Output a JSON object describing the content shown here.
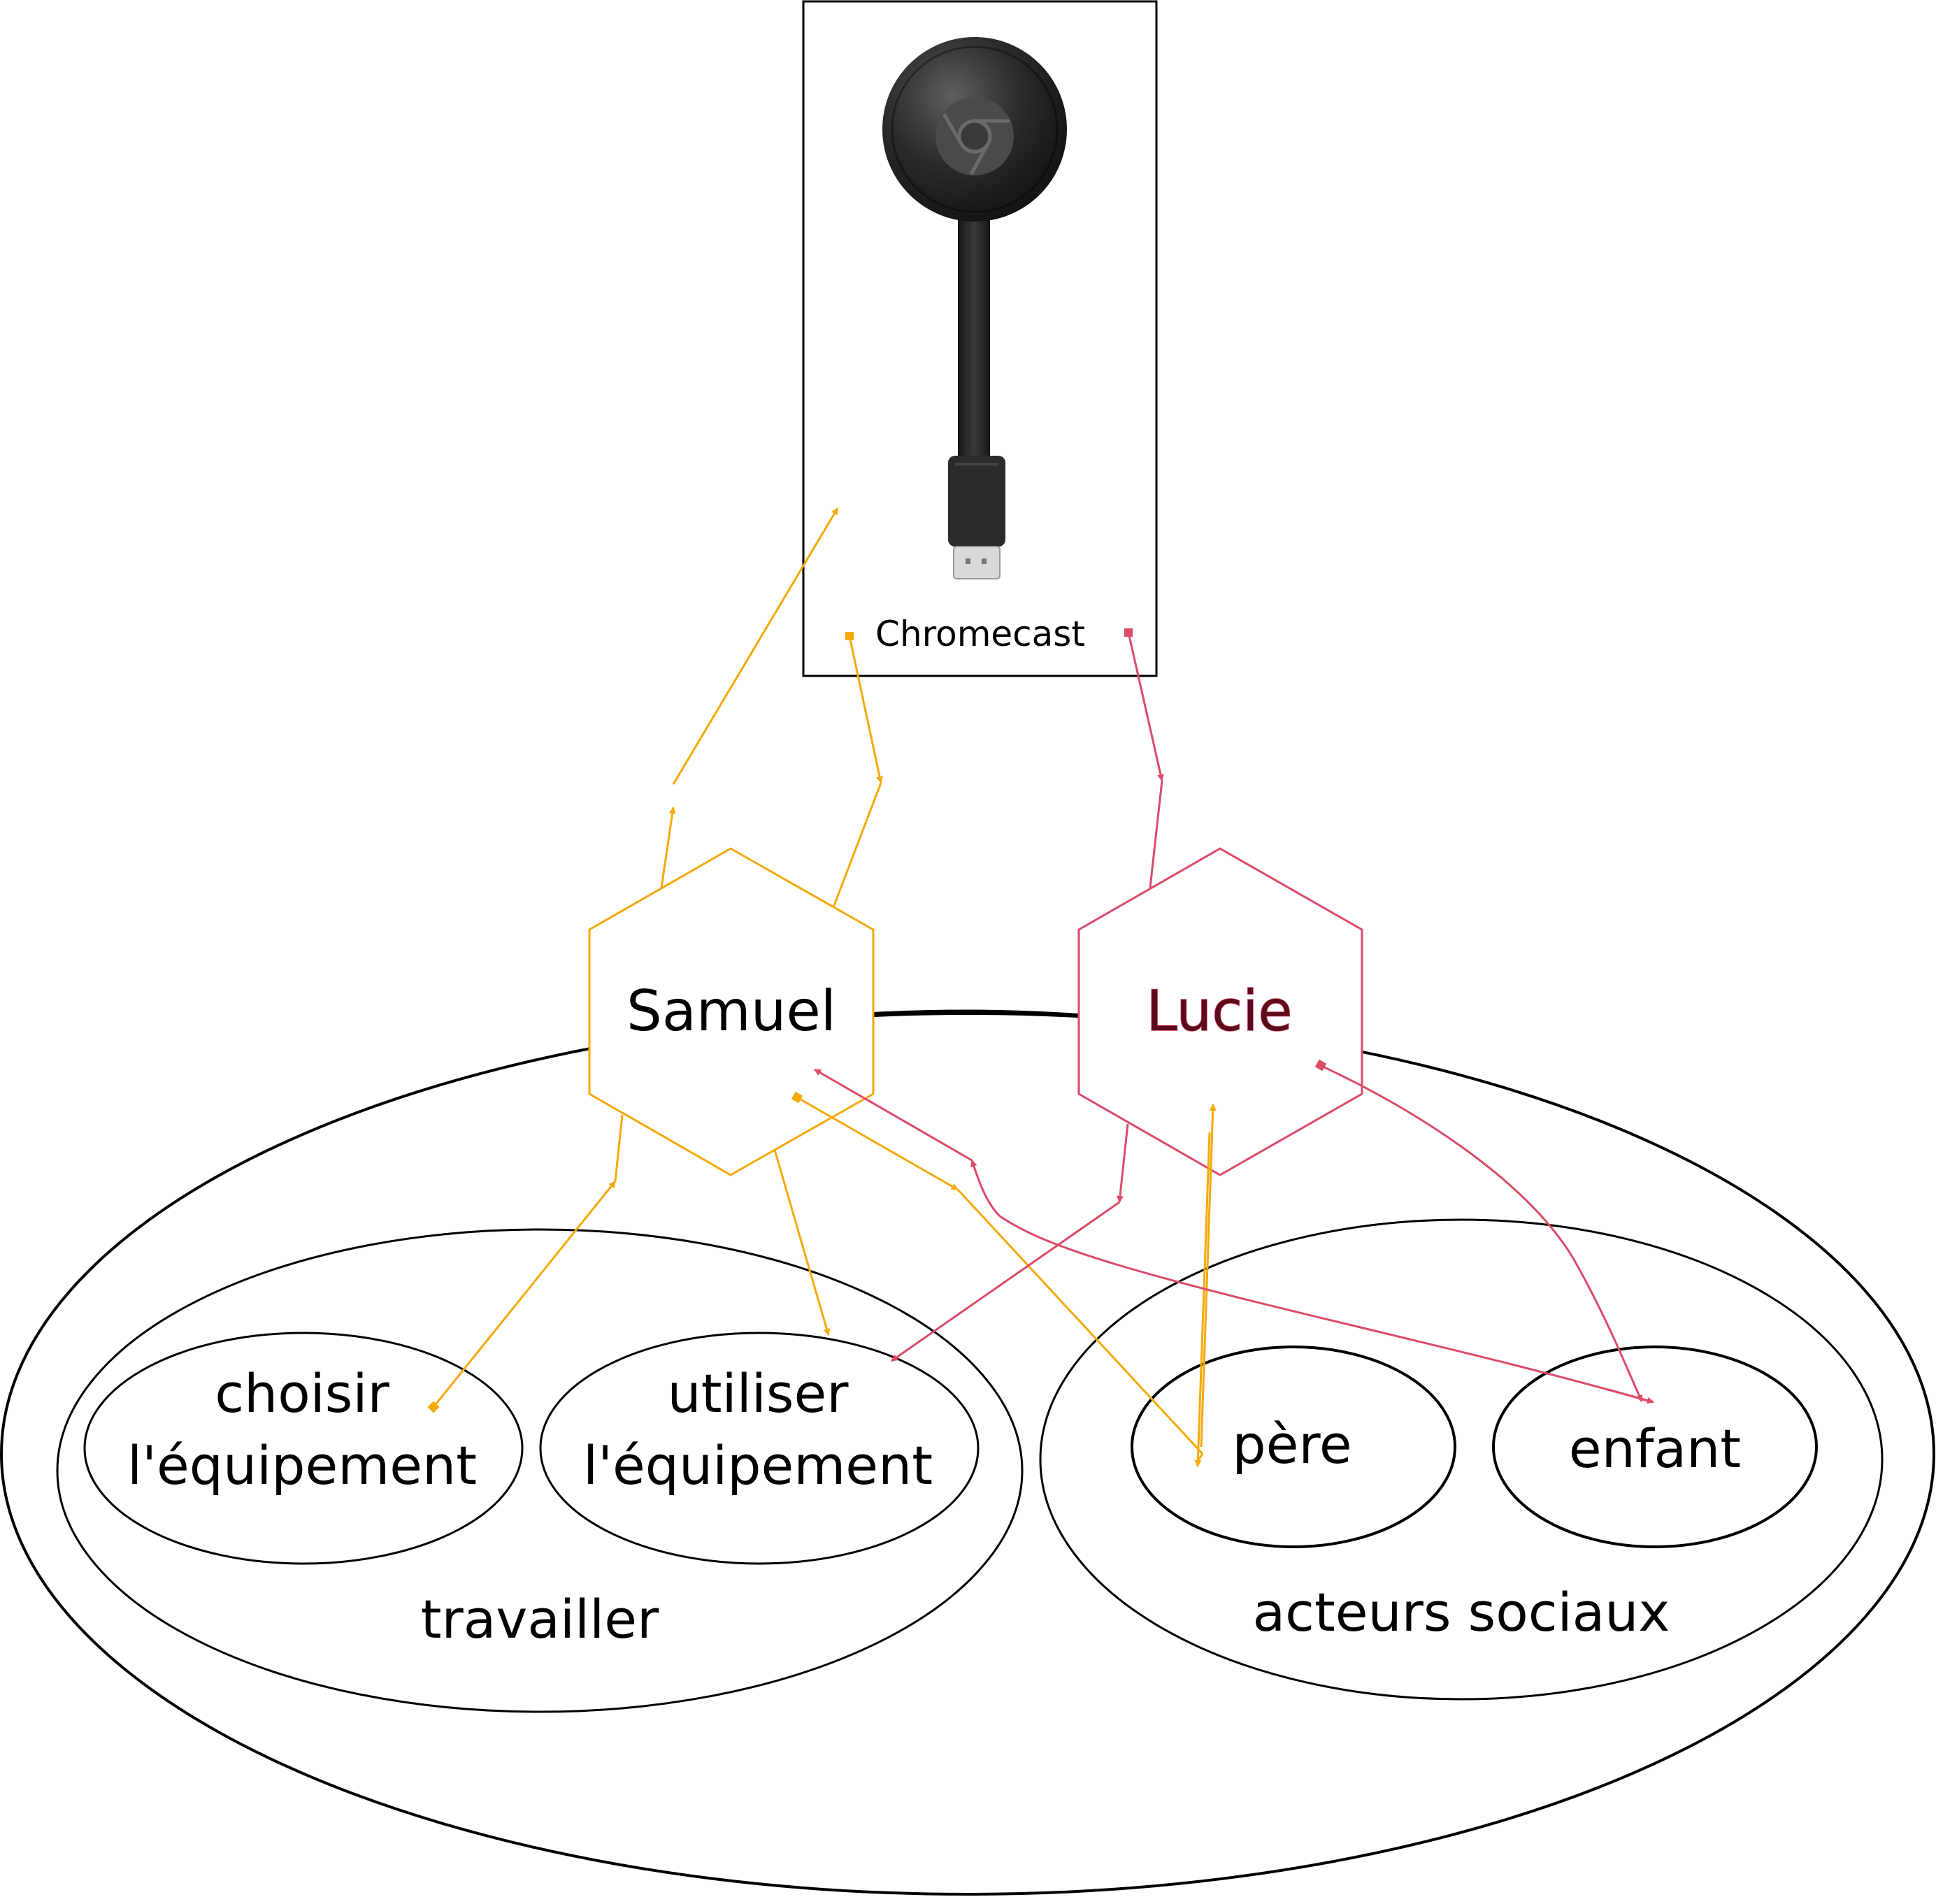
{
  "device": {
    "label": "Chromecast",
    "icon": "chromecast-dongle-icon"
  },
  "actors": {
    "samuel": "Samuel",
    "lucie": "Lucie"
  },
  "activities": {
    "choisir": [
      "choisir",
      "l'équipement"
    ],
    "utiliser": [
      "utiliser",
      "l'équipement"
    ],
    "group_label": "travailler"
  },
  "social": {
    "pere": "père",
    "enfant": "enfant",
    "group_label": "acteurs sociaux"
  },
  "colors": {
    "samuel": "#f6a90b",
    "lucie": "#dc4b67",
    "lucie_text": "#5a0a1c",
    "outline": "#000000"
  }
}
